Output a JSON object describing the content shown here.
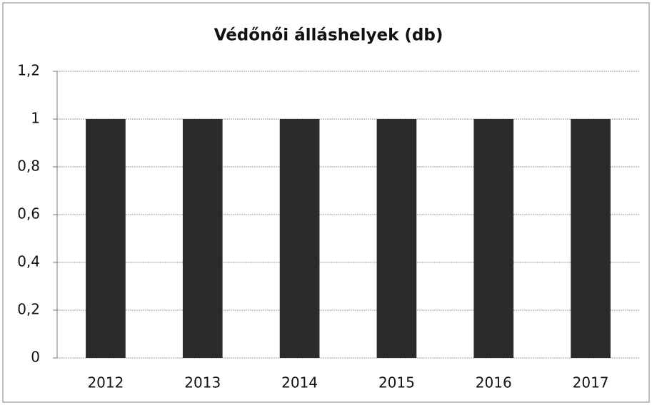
{
  "chart_data": {
    "type": "bar",
    "title": "Védőnői álláshelyek (db)",
    "categories": [
      "2012",
      "2013",
      "2014",
      "2015",
      "2016",
      "2017"
    ],
    "values": [
      1,
      1,
      1,
      1,
      1,
      1
    ],
    "color": "#2b2b2b",
    "ylim": [
      0,
      1.2
    ],
    "yticks": [
      0,
      {
        "value": 0.2,
        "label": "0,2"
      },
      {
        "value": 0.4,
        "label": "0,4"
      },
      {
        "value": 0.6,
        "label": "0,6"
      },
      {
        "value": 0.8,
        "label": "0,8"
      },
      1,
      {
        "value": 1.2,
        "label": "1,2"
      }
    ],
    "grid": true
  }
}
